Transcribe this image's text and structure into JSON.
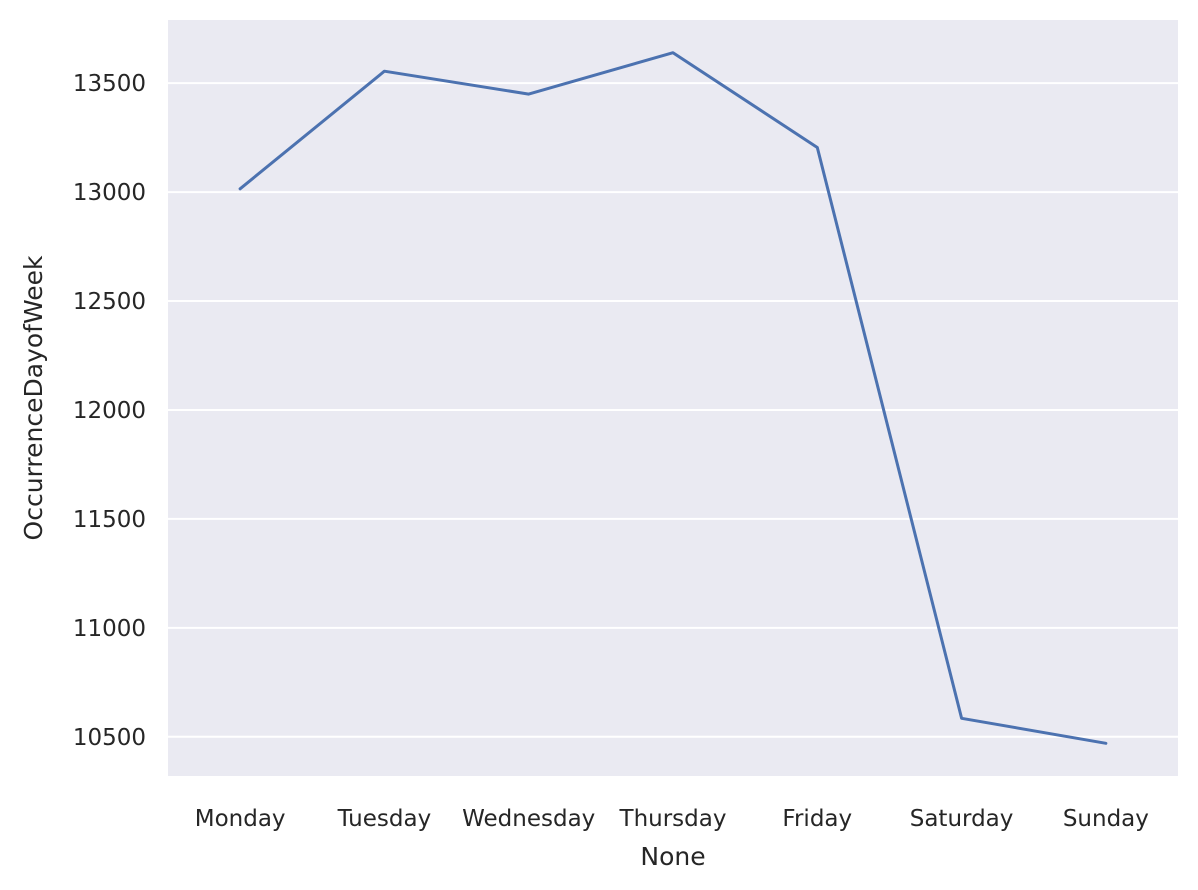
{
  "chart_data": {
    "type": "line",
    "title": "",
    "xlabel": "None",
    "ylabel": "OccurrenceDayofWeek",
    "categories": [
      "Monday",
      "Tuesday",
      "Wednesday",
      "Thursday",
      "Friday",
      "Saturday",
      "Sunday"
    ],
    "series": [
      {
        "values": [
          13015,
          13555,
          13450,
          13640,
          13205,
          10585,
          10470
        ],
        "color": "#4c72b0"
      }
    ],
    "yticks": [
      10500,
      11000,
      11500,
      12000,
      12500,
      13000,
      13500
    ],
    "ylim": [
      10320,
      13790
    ],
    "grid": true,
    "background": "#eaeaf2"
  }
}
